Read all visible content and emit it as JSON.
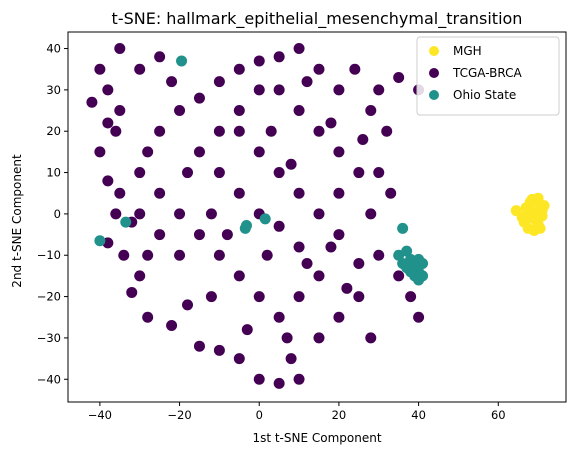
{
  "chart_data": {
    "type": "scatter",
    "title": "t-SNE: hallmark_epithelial_mesenchymal_transition",
    "xlabel": "1st t-SNE Component",
    "ylabel": "2nd t-SNE Component",
    "xlim": [
      -48,
      77
    ],
    "ylim": [
      -45.5,
      44
    ],
    "xticks": [
      -40,
      -20,
      0,
      20,
      40,
      60
    ],
    "yticks": [
      -40,
      -30,
      -20,
      -10,
      0,
      10,
      20,
      30,
      40
    ],
    "grid": false,
    "legend_position": "top-right",
    "series": [
      {
        "name": "MGH",
        "color": "#fde725",
        "points": [
          [
            64.5,
            0.8
          ],
          [
            66.5,
            -2.0
          ],
          [
            67.0,
            1.5
          ],
          [
            67.5,
            -3.5
          ],
          [
            68.0,
            2.8
          ],
          [
            68.5,
            -1.0
          ],
          [
            69.0,
            0.5
          ],
          [
            69.5,
            3.2
          ],
          [
            70.0,
            -2.5
          ],
          [
            70.5,
            1.8
          ],
          [
            71.0,
            -0.5
          ],
          [
            69.0,
            -4.0
          ],
          [
            70.0,
            3.8
          ],
          [
            71.5,
            2.0
          ],
          [
            67.5,
            0.0
          ],
          [
            68.5,
            3.5
          ],
          [
            70.5,
            -3.5
          ],
          [
            66.0,
            -0.8
          ],
          [
            69.5,
            -1.5
          ],
          [
            71.0,
            0.8
          ]
        ]
      },
      {
        "name": "TCGA-BRCA",
        "color": "#440154",
        "points": [
          [
            -40,
            35
          ],
          [
            -38,
            30
          ],
          [
            -42,
            27
          ],
          [
            -35,
            25
          ],
          [
            -30,
            35
          ],
          [
            -25,
            38
          ],
          [
            -36,
            20
          ],
          [
            -40,
            15
          ],
          [
            -38,
            8
          ],
          [
            -36,
            0
          ],
          [
            -38,
            -7
          ],
          [
            -34,
            -10
          ],
          [
            -30,
            -15
          ],
          [
            -32,
            -19
          ],
          [
            -28,
            -25
          ],
          [
            -22,
            -27
          ],
          [
            -18,
            -22
          ],
          [
            -15,
            -32
          ],
          [
            -10,
            -33
          ],
          [
            -5,
            -35
          ],
          [
            0,
            -40
          ],
          [
            5,
            -41
          ],
          [
            10,
            -40
          ],
          [
            8,
            -35
          ],
          [
            15,
            -30
          ],
          [
            20,
            -25
          ],
          [
            22,
            -18
          ],
          [
            25,
            -12
          ],
          [
            20,
            -5
          ],
          [
            28,
            0
          ],
          [
            30,
            10
          ],
          [
            32,
            20
          ],
          [
            28,
            25
          ],
          [
            30,
            30
          ],
          [
            20,
            30
          ],
          [
            15,
            35
          ],
          [
            10,
            40
          ],
          [
            5,
            38
          ],
          [
            0,
            37
          ],
          [
            -5,
            35
          ],
          [
            -10,
            32
          ],
          [
            -15,
            28
          ],
          [
            -20,
            25
          ],
          [
            -25,
            20
          ],
          [
            -28,
            15
          ],
          [
            -30,
            10
          ],
          [
            -25,
            5
          ],
          [
            -20,
            0
          ],
          [
            -15,
            -5
          ],
          [
            -10,
            -10
          ],
          [
            -5,
            -15
          ],
          [
            0,
            -20
          ],
          [
            5,
            -25
          ],
          [
            10,
            -20
          ],
          [
            15,
            -15
          ],
          [
            10,
            -8
          ],
          [
            5,
            -3
          ],
          [
            0,
            0
          ],
          [
            -5,
            5
          ],
          [
            -10,
            10
          ],
          [
            -15,
            15
          ],
          [
            -10,
            20
          ],
          [
            -5,
            25
          ],
          [
            0,
            30
          ],
          [
            5,
            30
          ],
          [
            10,
            25
          ],
          [
            15,
            20
          ],
          [
            20,
            15
          ],
          [
            25,
            10
          ],
          [
            20,
            5
          ],
          [
            15,
            0
          ],
          [
            10,
            5
          ],
          [
            5,
            10
          ],
          [
            0,
            15
          ],
          [
            -5,
            20
          ],
          [
            30,
            -10
          ],
          [
            35,
            -15
          ],
          [
            38,
            -20
          ],
          [
            40,
            -25
          ],
          [
            35,
            33
          ],
          [
            40,
            30
          ],
          [
            -35,
            40
          ],
          [
            -20,
            -10
          ],
          [
            -25,
            -5
          ],
          [
            -30,
            0
          ],
          [
            -35,
            5
          ],
          [
            -32,
            -2
          ],
          [
            -18,
            10
          ],
          [
            -12,
            0
          ],
          [
            -8,
            -5
          ],
          [
            2,
            -10
          ],
          [
            8,
            12
          ],
          [
            12,
            -12
          ],
          [
            18,
            -8
          ],
          [
            25,
            -20
          ],
          [
            28,
            -30
          ],
          [
            3,
            20
          ],
          [
            -3,
            -28
          ],
          [
            12,
            32
          ],
          [
            24,
            35
          ],
          [
            33,
            5
          ],
          [
            -28,
            -10
          ],
          [
            -38,
            22
          ],
          [
            -22,
            32
          ],
          [
            7,
            -30
          ],
          [
            18,
            22
          ],
          [
            -12,
            -20
          ],
          [
            26,
            18
          ]
        ]
      },
      {
        "name": "Ohio State",
        "color": "#21918c",
        "points": [
          [
            -40,
            -6.5
          ],
          [
            -33.5,
            -2
          ],
          [
            -19.5,
            37
          ],
          [
            -3.5,
            -3.5
          ],
          [
            -3.2,
            -2.8
          ],
          [
            1.5,
            -1.2
          ],
          [
            36,
            -3.5
          ],
          [
            35,
            -10
          ],
          [
            36,
            -12
          ],
          [
            37,
            -9
          ],
          [
            38,
            -11
          ],
          [
            39,
            -13
          ],
          [
            40,
            -14
          ],
          [
            41,
            -12
          ],
          [
            39,
            -15
          ],
          [
            40,
            -16
          ],
          [
            41,
            -15
          ],
          [
            37,
            -13
          ],
          [
            38,
            -14
          ],
          [
            40,
            -11
          ]
        ]
      }
    ]
  }
}
